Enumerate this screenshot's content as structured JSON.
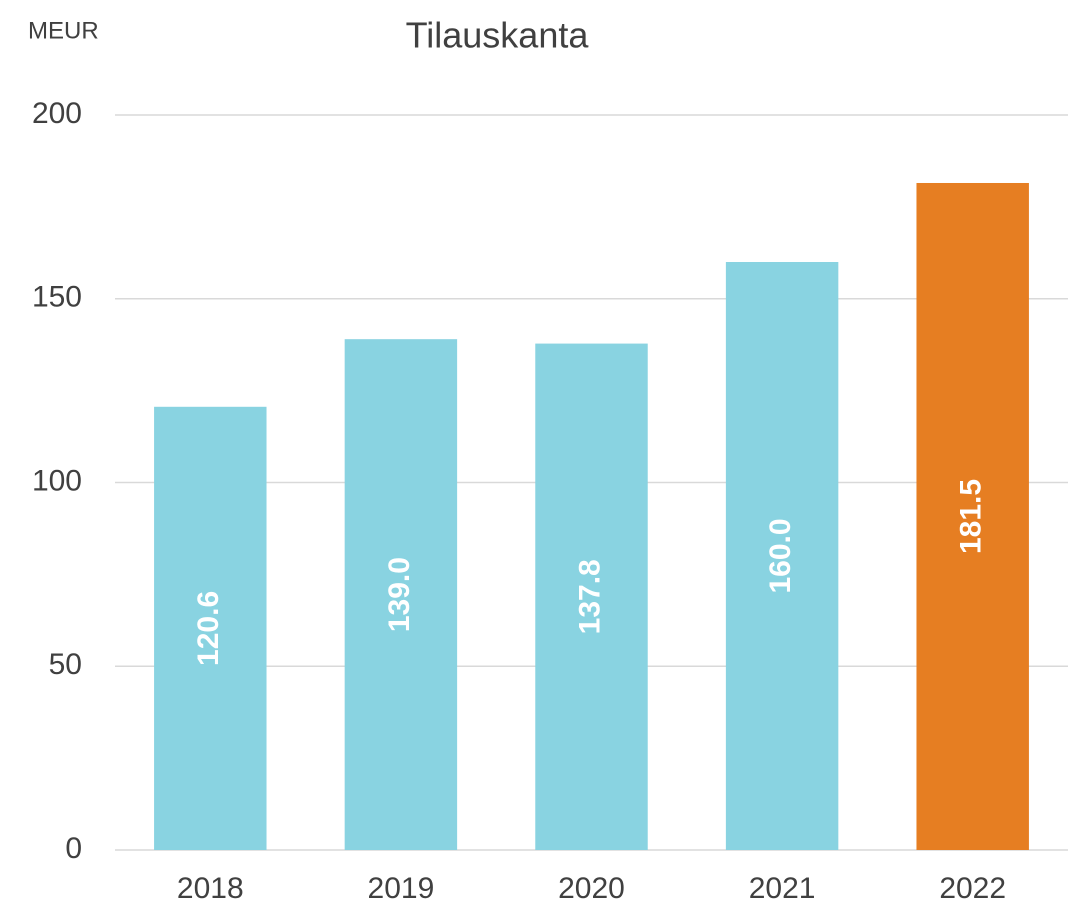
{
  "chart_data": {
    "type": "bar",
    "title": "Tilauskanta",
    "y_label": "MEUR",
    "categories": [
      "2018",
      "2019",
      "2020",
      "2021",
      "2022"
    ],
    "values": [
      120.6,
      139.0,
      137.8,
      160.0,
      181.5
    ],
    "value_labels": [
      "120.6",
      "139.0",
      "137.8",
      "160.0",
      "181.5"
    ],
    "colors": [
      "#89d3e1",
      "#89d3e1",
      "#89d3e1",
      "#89d3e1",
      "#e67e22"
    ],
    "ylim": [
      0,
      200
    ],
    "yticks": [
      0,
      50,
      100,
      150,
      200
    ],
    "grid": true
  }
}
